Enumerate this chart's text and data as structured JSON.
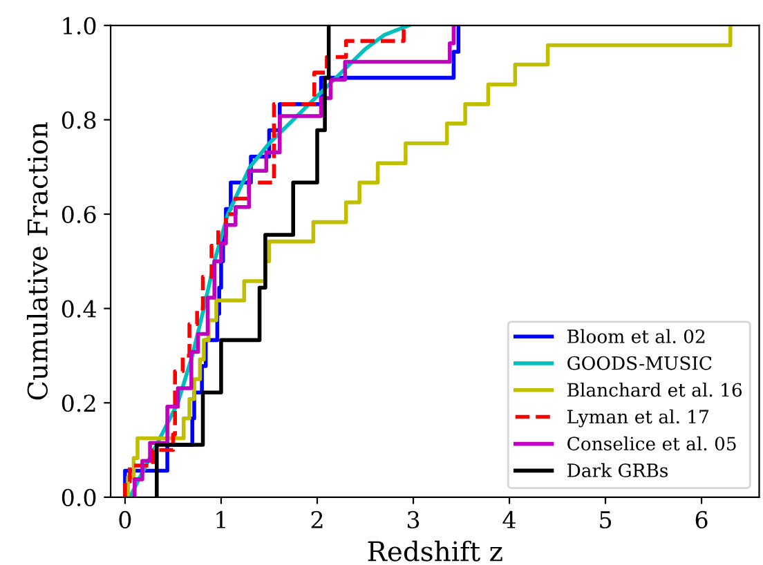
{
  "chart_data": {
    "type": "step",
    "xlabel": "Redshift z",
    "ylabel": "Cumulative Fraction",
    "xlim": [
      -0.15,
      6.6
    ],
    "ylim": [
      0,
      1
    ],
    "xticks": [
      0,
      1,
      2,
      3,
      4,
      5,
      6
    ],
    "yticks": [
      {
        "value": 0,
        "label": "0.0"
      },
      {
        "value": 0.2,
        "label": "0.2"
      },
      {
        "value": 0.4,
        "label": "0.4"
      },
      {
        "value": 0.6,
        "label": "0.6"
      },
      {
        "value": 0.8,
        "label": "0.8"
      },
      {
        "value": 1.0,
        "label": "1.0"
      }
    ],
    "grid": false,
    "legend": "bottom right",
    "series": [
      {
        "name": "Bloom et al. 02",
        "color": "#0000ff",
        "line_style": "solid",
        "x": [
          0.0,
          0.0,
          0.44,
          0.7,
          0.72,
          0.8,
          0.84,
          0.96,
          0.98,
          1.0,
          1.02,
          1.05,
          1.1,
          1.31,
          1.5,
          1.61,
          2.04,
          3.42,
          3.47
        ],
        "values": [
          0,
          0.056,
          0.111,
          0.167,
          0.222,
          0.278,
          0.333,
          0.389,
          0.444,
          0.5,
          0.556,
          0.611,
          0.667,
          0.722,
          0.778,
          0.833,
          0.889,
          0.944,
          1.0
        ]
      },
      {
        "name": "GOODS-MUSIC",
        "color": "#00bfbf",
        "type": "line",
        "line_style": "solid",
        "x": [
          0.05,
          0.3,
          0.55,
          0.7,
          0.82,
          0.93,
          1.07,
          1.3,
          1.5,
          1.75,
          2.0,
          2.25,
          2.5,
          2.7,
          2.95
        ],
        "values": [
          0,
          0.1,
          0.2,
          0.3,
          0.4,
          0.5,
          0.6,
          0.7,
          0.75,
          0.8,
          0.85,
          0.9,
          0.95,
          0.98,
          1.0
        ]
      },
      {
        "name": "Blanchard et al. 16",
        "color": "#bfbf00",
        "line_style": "solid",
        "x": [
          0.03,
          0.03,
          0.09,
          0.13,
          0.61,
          0.67,
          0.72,
          0.78,
          0.82,
          0.87,
          0.95,
          1.24,
          1.46,
          1.5,
          1.96,
          2.3,
          2.44,
          2.63,
          2.92,
          3.35,
          3.54,
          3.78,
          4.06,
          4.4,
          6.3
        ],
        "values": [
          0,
          0.042,
          0.083,
          0.125,
          0.167,
          0.208,
          0.25,
          0.292,
          0.333,
          0.375,
          0.417,
          0.458,
          0.5,
          0.542,
          0.583,
          0.625,
          0.667,
          0.708,
          0.75,
          0.792,
          0.833,
          0.875,
          0.917,
          0.958,
          1.0
        ]
      },
      {
        "name": "Lyman et al. 17",
        "color": "#ff0000",
        "line_style": "dashed",
        "x": [
          0.0,
          0.0,
          0.05,
          0.29,
          0.5,
          0.52,
          0.6,
          0.67,
          0.75,
          0.81,
          0.9,
          0.97,
          1.05,
          1.15,
          1.29,
          1.55,
          1.97,
          2.1,
          2.3,
          2.9
        ],
        "values": [
          0,
          0.033,
          0.067,
          0.1,
          0.133,
          0.267,
          0.3,
          0.367,
          0.4,
          0.467,
          0.533,
          0.567,
          0.6,
          0.633,
          0.667,
          0.833,
          0.9,
          0.933,
          0.967,
          1.0
        ]
      },
      {
        "name": "Conselice et al. 05",
        "color": "#bf00bf",
        "line_style": "solid",
        "x": [
          0.1,
          0.1,
          0.18,
          0.26,
          0.44,
          0.55,
          0.69,
          0.76,
          0.86,
          0.93,
          1.0,
          1.05,
          1.15,
          1.29,
          1.47,
          1.61,
          2.04,
          2.14,
          2.29,
          3.38,
          3.42
        ],
        "values": [
          0,
          0.038,
          0.077,
          0.115,
          0.192,
          0.231,
          0.308,
          0.346,
          0.423,
          0.5,
          0.538,
          0.577,
          0.615,
          0.692,
          0.731,
          0.808,
          0.846,
          0.885,
          0.923,
          0.962,
          1.0
        ]
      },
      {
        "name": "Dark GRBs",
        "color": "#000000",
        "line_style": "solid",
        "x": [
          0.33,
          0.33,
          0.81,
          1.0,
          1.4,
          1.46,
          1.75,
          2.0,
          2.08,
          2.12
        ],
        "values": [
          0,
          0.111,
          0.222,
          0.333,
          0.444,
          0.556,
          0.667,
          0.778,
          0.889,
          1.0
        ]
      }
    ]
  }
}
